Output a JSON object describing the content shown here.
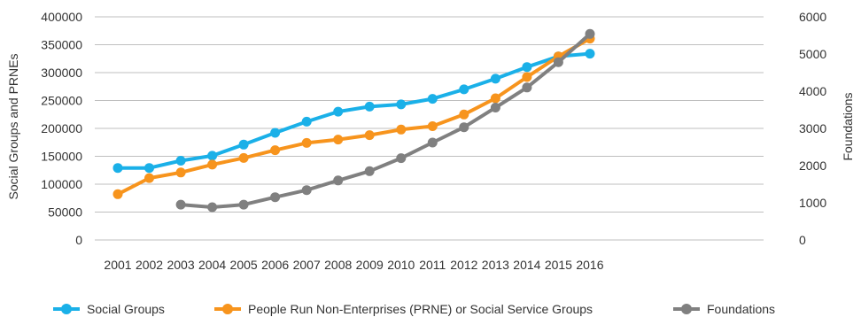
{
  "chart_data": {
    "type": "line",
    "title": "",
    "xlabel": "",
    "ylabel": "Social Groups and PRNEs",
    "y2label": "Foundations",
    "categories": [
      "2001",
      "2002",
      "2003",
      "2004",
      "2005",
      "2006",
      "2007",
      "2008",
      "2009",
      "2010",
      "2011",
      "2012",
      "2013",
      "2014",
      "2015",
      "2016"
    ],
    "ylim": [
      0,
      400000
    ],
    "y2lim": [
      0,
      6000
    ],
    "yticks": [
      "400000",
      "350000",
      "300000",
      "250000",
      "200000",
      "150000",
      "100000",
      "50000",
      "0"
    ],
    "y2ticks": [
      "6000",
      "5000",
      "4000",
      "3000",
      "2000",
      "1000",
      "0"
    ],
    "grid": true,
    "legend_position": "bottom",
    "series": [
      {
        "name": "Social Groups",
        "axis": "left",
        "color": "#1ab0e8",
        "values": [
          129000,
          129000,
          142000,
          151000,
          171000,
          192000,
          212000,
          230000,
          239000,
          243000,
          253000,
          270000,
          289000,
          310000,
          329000,
          334000
        ]
      },
      {
        "name": "People Run Non-Enterprises (PRNE) or Social Service Groups",
        "axis": "left",
        "color": "#f7941d",
        "values": [
          82000,
          111000,
          121000,
          135000,
          147000,
          161000,
          174000,
          180000,
          188000,
          198000,
          204000,
          225000,
          254000,
          292000,
          329000,
          361000
        ]
      },
      {
        "name": "Foundations",
        "axis": "right",
        "color": "#808080",
        "values": [
          null,
          null,
          950,
          880,
          950,
          1150,
          1340,
          1600,
          1850,
          2200,
          2620,
          3030,
          3560,
          4100,
          4780,
          5540
        ]
      }
    ]
  }
}
